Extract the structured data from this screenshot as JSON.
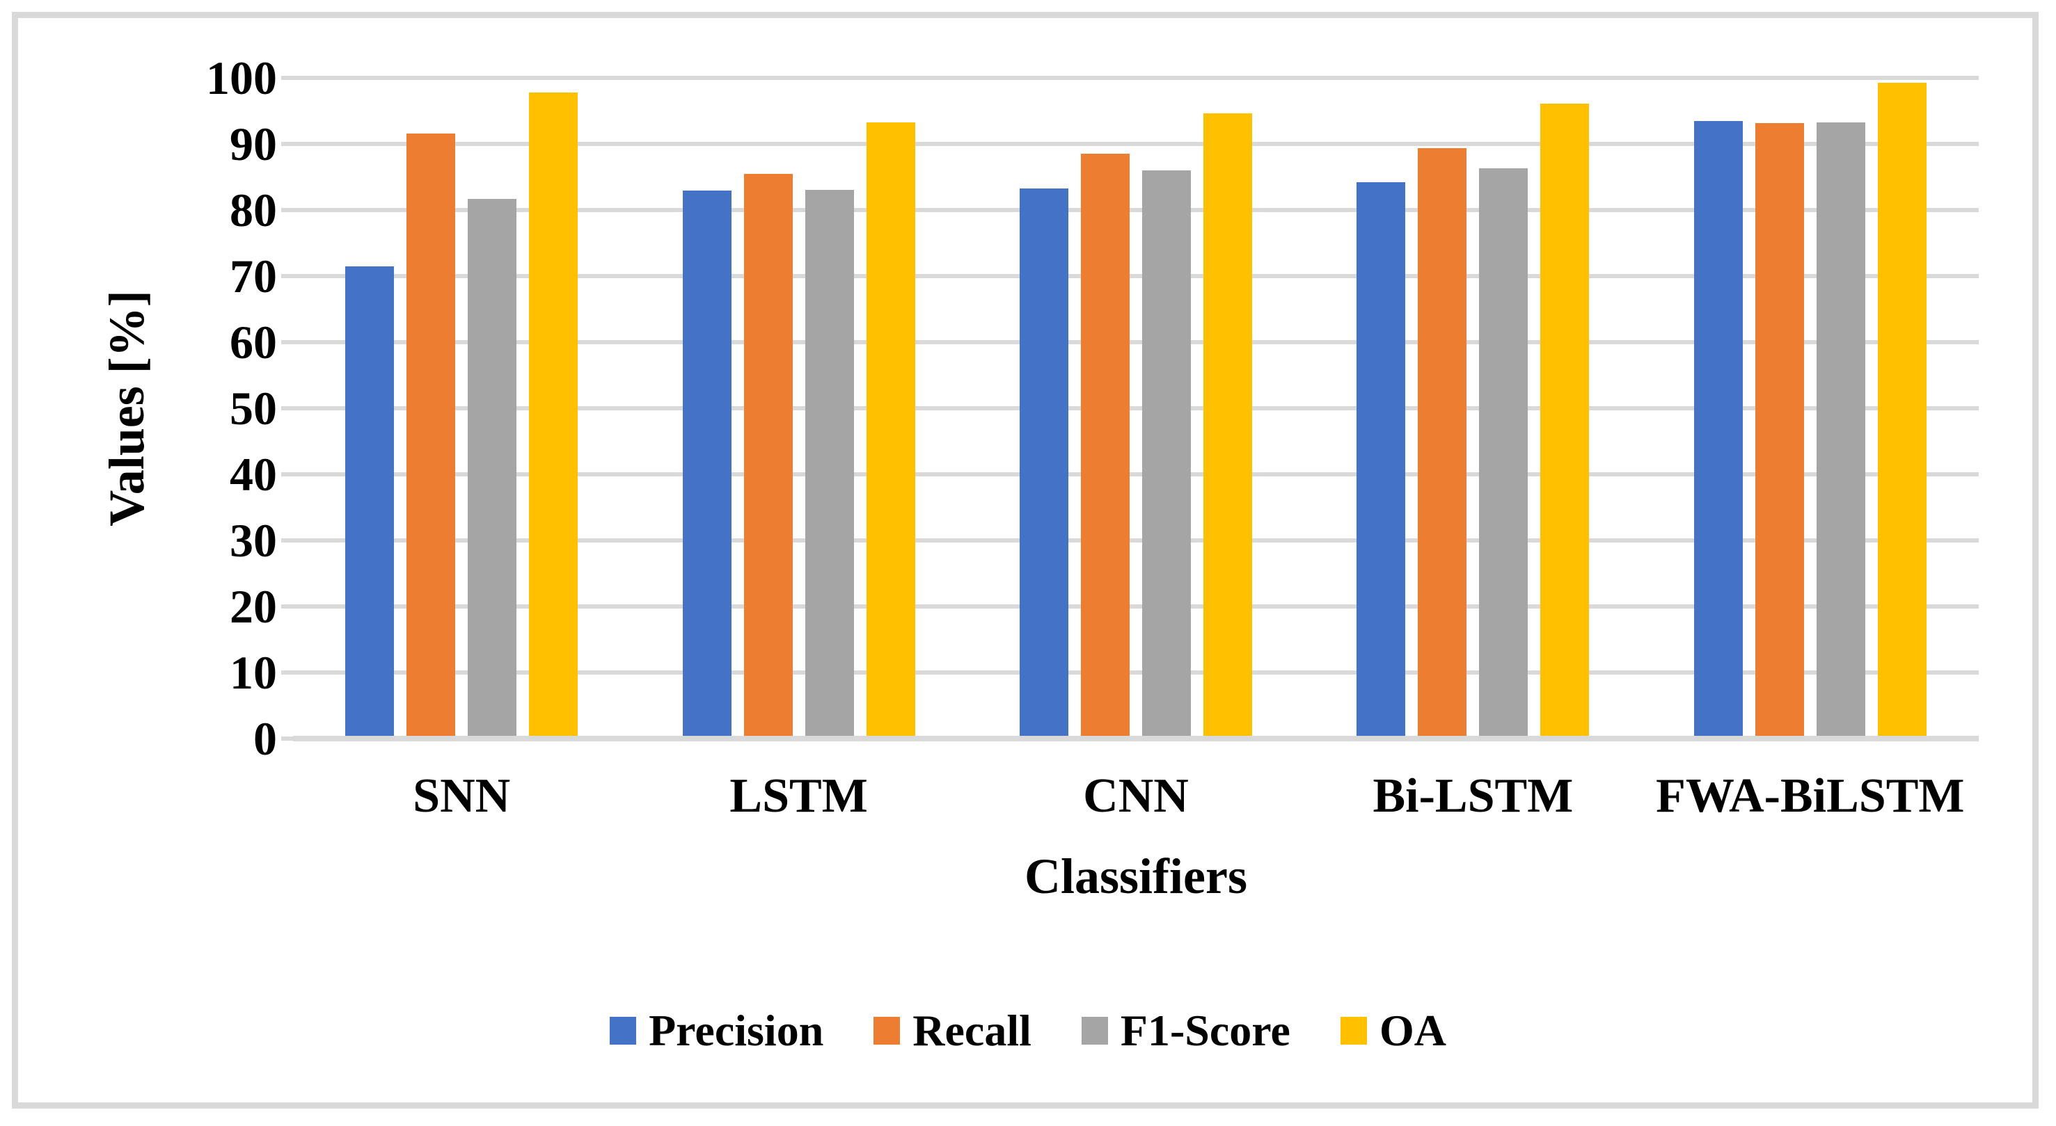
{
  "figure": {
    "background": "#FFFFFF",
    "border_color": "#D9D9D9"
  },
  "chart_data": {
    "type": "bar",
    "title": "",
    "categories": [
      "SNN",
      "LSTM",
      "CNN",
      "Bi-LSTM",
      "FWA-BiLSTM"
    ],
    "series": [
      {
        "name": "Precision",
        "color": "#4472C4",
        "values": [
          71.5,
          82.9,
          83.3,
          84.2,
          93.5
        ]
      },
      {
        "name": "Recall",
        "color": "#ED7D31",
        "values": [
          91.6,
          85.5,
          88.5,
          89.4,
          93.2
        ]
      },
      {
        "name": "F1-Score",
        "color": "#A5A5A5",
        "values": [
          81.7,
          83.1,
          86.0,
          86.3,
          93.3
        ]
      },
      {
        "name": "OA",
        "color": "#FFC000",
        "values": [
          97.8,
          93.3,
          94.6,
          96.1,
          99.3
        ]
      }
    ],
    "xlabel": "Classifiers",
    "ylabel": "Values [%]",
    "ylim": [
      0,
      100
    ],
    "yticks": [
      0,
      10,
      20,
      30,
      40,
      50,
      60,
      70,
      80,
      90,
      100
    ],
    "grid": "horizontal",
    "gridline_color": "#D9D9D9",
    "legend_position": "bottom"
  }
}
